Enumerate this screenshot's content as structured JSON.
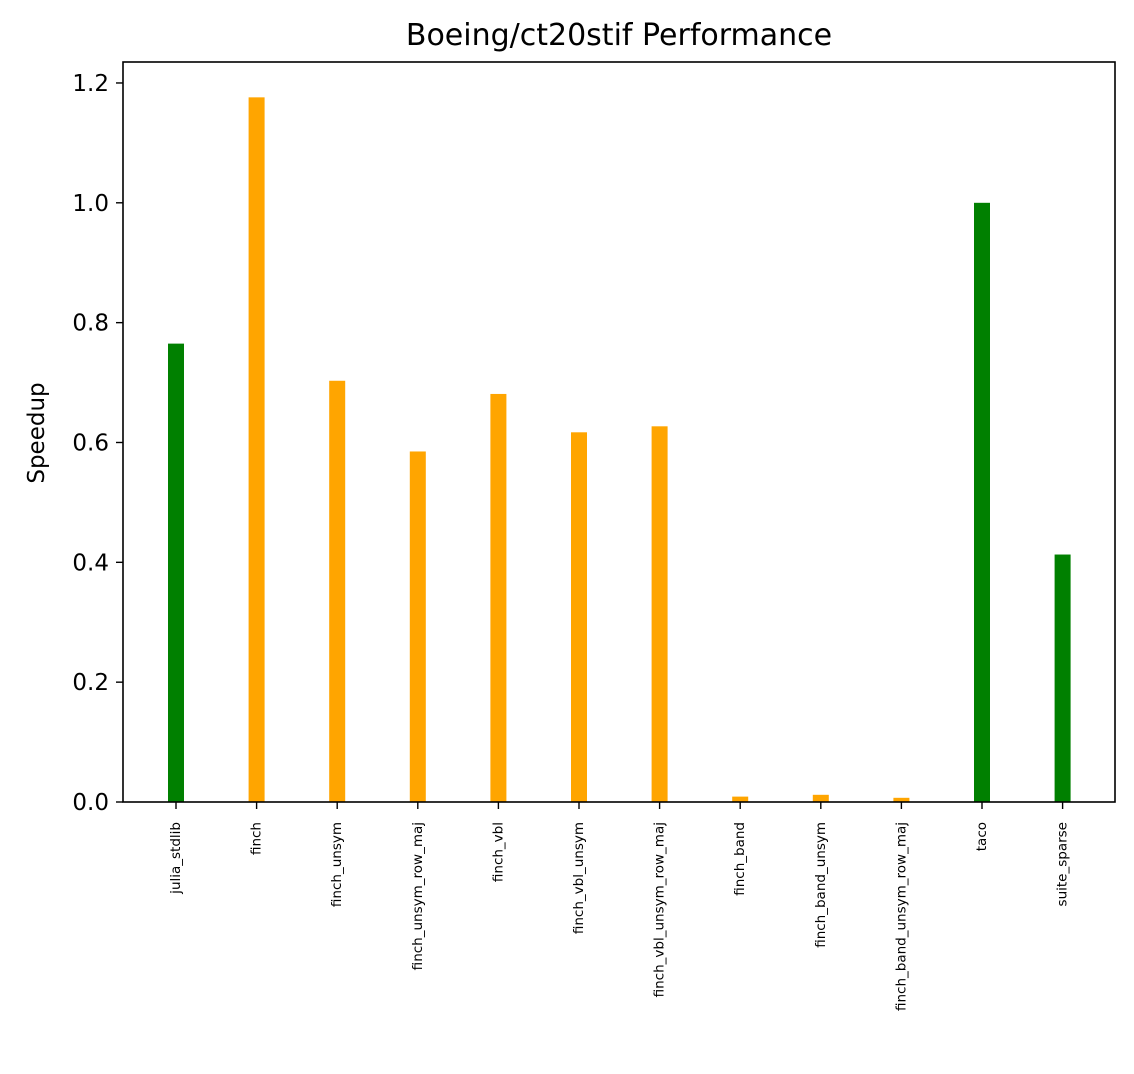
{
  "chart_data": {
    "type": "bar",
    "title": "Boeing/ct20stif Performance",
    "xlabel": "",
    "ylabel": "Speedup",
    "ylim": [
      0.0,
      1.235
    ],
    "yticks": [
      "0.0",
      "0.2",
      "0.4",
      "0.6",
      "0.8",
      "1.0",
      "1.2"
    ],
    "ytick_values": [
      0.0,
      0.2,
      0.4,
      0.6,
      0.8,
      1.0,
      1.2
    ],
    "grid": false,
    "legend": "none",
    "categories": [
      "julia_stdlib",
      "finch",
      "finch_unsym",
      "finch_unsym_row_maj",
      "finch_vbl",
      "finch_vbl_unsym",
      "finch_vbl_unsym_row_maj",
      "finch_band",
      "finch_band_unsym",
      "finch_band_unsym_row_maj",
      "taco",
      "suite_sparse"
    ],
    "values": [
      0.765,
      1.176,
      0.703,
      0.585,
      0.681,
      0.617,
      0.627,
      0.009,
      0.012,
      0.007,
      1.0,
      0.413
    ],
    "bar_colors": [
      "#008000",
      "#ffa500",
      "#ffa500",
      "#ffa500",
      "#ffa500",
      "#ffa500",
      "#ffa500",
      "#ffa500",
      "#ffa500",
      "#ffa500",
      "#008000",
      "#008000"
    ]
  }
}
